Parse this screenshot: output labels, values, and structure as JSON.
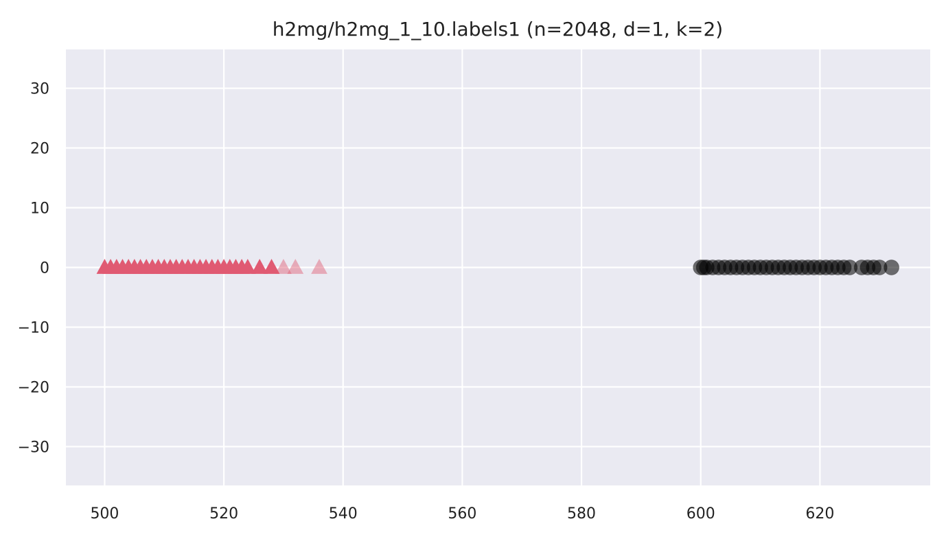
{
  "chart_data": {
    "type": "scatter",
    "title": "h2mg/h2mg_1_10.labels1 (n=2048, d=1, k=2)",
    "xlabel": "",
    "ylabel": "",
    "xlim": [
      493.5,
      638.5
    ],
    "ylim": [
      -36.5,
      36.5
    ],
    "x_ticks": [
      500,
      520,
      540,
      560,
      580,
      600,
      620
    ],
    "y_ticks": [
      30,
      20,
      10,
      0,
      -10,
      -20,
      -30
    ],
    "y_tick_labels": [
      "30",
      "20",
      "10",
      "0",
      "−10",
      "−20",
      "−30"
    ],
    "grid": true,
    "background": "#eaeaf2",
    "series": [
      {
        "marker": "triangle",
        "color": "#e05a72",
        "x": [
          500,
          501,
          502,
          503,
          504,
          505,
          506,
          507,
          508,
          509,
          510,
          511,
          512,
          513,
          514,
          515,
          516,
          517,
          518,
          519,
          520,
          521,
          522,
          523,
          524,
          526,
          528
        ],
        "y": [
          0,
          0,
          0,
          0,
          0,
          0,
          0,
          0,
          0,
          0,
          0,
          0,
          0,
          0,
          0,
          0,
          0,
          0,
          0,
          0,
          0,
          0,
          0,
          0,
          0,
          0,
          0
        ]
      },
      {
        "marker": "triangle",
        "color": "#e05a72",
        "opacity": 0.45,
        "x": [
          530,
          532,
          536
        ],
        "y": [
          0,
          0,
          0
        ]
      },
      {
        "marker": "circle",
        "color": "#000000",
        "opacity": 0.55,
        "x": [
          600,
          600.5,
          601,
          602,
          603,
          604,
          605,
          606,
          607,
          608,
          609,
          610,
          611,
          612,
          613,
          614,
          615,
          616,
          617,
          618,
          619,
          620,
          621,
          622,
          623,
          624,
          625,
          627,
          628,
          629,
          630,
          632
        ],
        "y": [
          0,
          0,
          0,
          0,
          0,
          0,
          0,
          0,
          0,
          0,
          0,
          0,
          0,
          0,
          0,
          0,
          0,
          0,
          0,
          0,
          0,
          0,
          0,
          0,
          0,
          0,
          0,
          0,
          0,
          0,
          0,
          0
        ]
      }
    ]
  }
}
